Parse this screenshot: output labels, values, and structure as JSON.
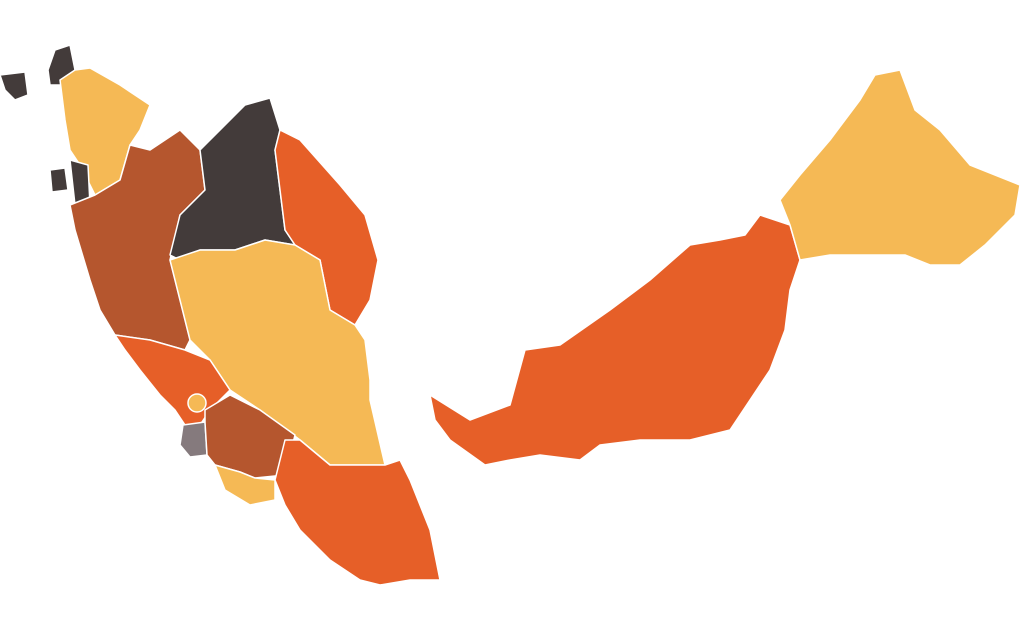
{
  "map": {
    "type": "choropleth",
    "palette": {
      "dark": "#433b3a",
      "light": "#f5b955",
      "brown": "#b5562e",
      "orange": "#e65f28",
      "gray": "#857a7d"
    },
    "regions": [
      {
        "id": "langkawi",
        "fill": "#433b3a"
      },
      {
        "id": "perlis",
        "fill": "#433b3a"
      },
      {
        "id": "kedah",
        "fill": "#f5b955"
      },
      {
        "id": "penang-mainland",
        "fill": "#433b3a"
      },
      {
        "id": "penang-island",
        "fill": "#433b3a"
      },
      {
        "id": "perak",
        "fill": "#b5562e"
      },
      {
        "id": "kelantan",
        "fill": "#433b3a"
      },
      {
        "id": "terengganu",
        "fill": "#e65f28"
      },
      {
        "id": "pahang",
        "fill": "#f5b955"
      },
      {
        "id": "selangor",
        "fill": "#e65f28"
      },
      {
        "id": "kuala-lumpur",
        "fill": "#f5b955"
      },
      {
        "id": "gray-district",
        "fill": "#857a7d"
      },
      {
        "id": "negeri-sembilan",
        "fill": "#b5562e"
      },
      {
        "id": "melaka",
        "fill": "#f5b955"
      },
      {
        "id": "johor",
        "fill": "#e65f28"
      },
      {
        "id": "sarawak",
        "fill": "#e65f28"
      },
      {
        "id": "sabah",
        "fill": "#f5b955"
      }
    ]
  }
}
